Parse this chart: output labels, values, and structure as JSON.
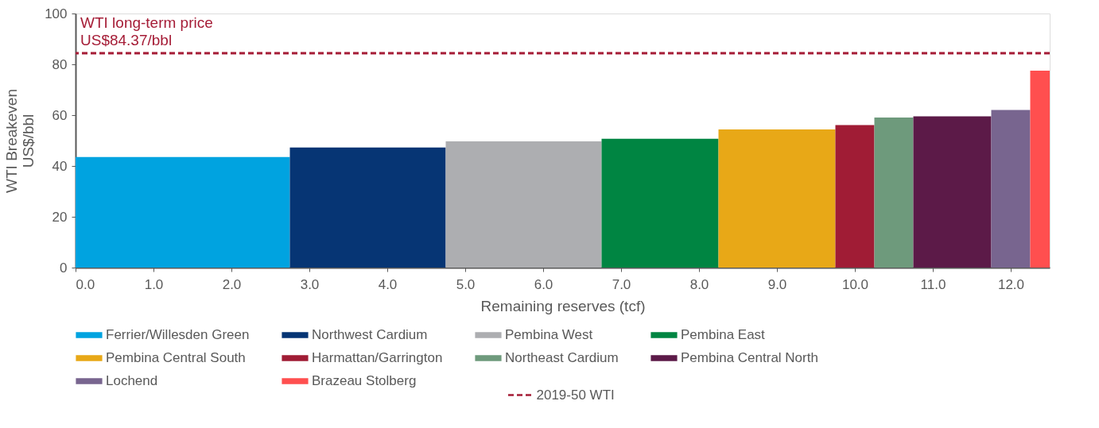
{
  "chart_data": {
    "type": "area",
    "xlabel": "Remaining reserves (tcf)",
    "ylabel": "WTI Breakeven\nUS$/bbl",
    "xlim": [
      0,
      12.5
    ],
    "ylim": [
      0,
      100
    ],
    "xticks": [
      {
        "value": 0,
        "label": "0.0"
      },
      {
        "value": 1,
        "label": "1.0"
      },
      {
        "value": 2,
        "label": "2.0"
      },
      {
        "value": 3,
        "label": "3.0"
      },
      {
        "value": 4,
        "label": "4.0"
      },
      {
        "value": 5,
        "label": "5.0"
      },
      {
        "value": 6,
        "label": "6.0"
      },
      {
        "value": 7,
        "label": "7.0"
      },
      {
        "value": 8,
        "label": "8.0"
      },
      {
        "value": 9,
        "label": "9.0"
      },
      {
        "value": 10,
        "label": "10.0"
      },
      {
        "value": 11,
        "label": "11.0"
      },
      {
        "value": 12,
        "label": "12.0"
      }
    ],
    "yticks": [
      0,
      20,
      40,
      60,
      80,
      100
    ],
    "grid": false,
    "legend": "bottom",
    "series": [
      {
        "name": "Ferrier/Willesden Green",
        "color": "#00a3e0",
        "x": [
          0,
          2.75
        ],
        "values": [
          43.5,
          43.5
        ]
      },
      {
        "name": "Northwest Cardium",
        "color": "#063574",
        "x": [
          2.75,
          4.75
        ],
        "values": [
          47.3,
          47.3
        ]
      },
      {
        "name": "Pembina West",
        "color": "#adaeb1",
        "x": [
          4.75,
          6.75
        ],
        "values": [
          49.7,
          49.7
        ]
      },
      {
        "name": "Pembina East",
        "color": "#008542",
        "x": [
          6.75,
          8.25
        ],
        "values": [
          50.7,
          50.7
        ]
      },
      {
        "name": "Pembina Central South",
        "color": "#e8a817",
        "x": [
          8.25,
          9.75
        ],
        "values": [
          54.4,
          54.4
        ]
      },
      {
        "name": "Harmattan/Garrington",
        "color": "#a01c35",
        "x": [
          9.75,
          10.25
        ],
        "values": [
          56.1,
          56.1
        ]
      },
      {
        "name": "Northeast Cardium",
        "color": "#6e9a7c",
        "x": [
          10.25,
          10.75
        ],
        "values": [
          59.1,
          59.1
        ]
      },
      {
        "name": "Pembina Central North",
        "color": "#5c1a48",
        "x": [
          10.75,
          11.75
        ],
        "values": [
          59.5,
          59.5
        ]
      },
      {
        "name": "Lochend",
        "color": "#78658f",
        "x": [
          11.75,
          12.25
        ],
        "values": [
          62.0,
          62.0
        ]
      },
      {
        "name": "Brazeau Stolberg",
        "color": "#ff4f4f",
        "x": [
          12.25,
          12.5
        ],
        "values": [
          77.5,
          77.5
        ]
      }
    ],
    "ref_lines": [
      {
        "axis": "y",
        "value": 84.37,
        "label": "2019-50 WTI",
        "color": "#a51c36",
        "line_style": "dashed"
      }
    ],
    "annotations": [
      {
        "text": "WTI long-term price\nUS$84.37/bbl",
        "x": 0,
        "y": 84.37
      }
    ]
  }
}
